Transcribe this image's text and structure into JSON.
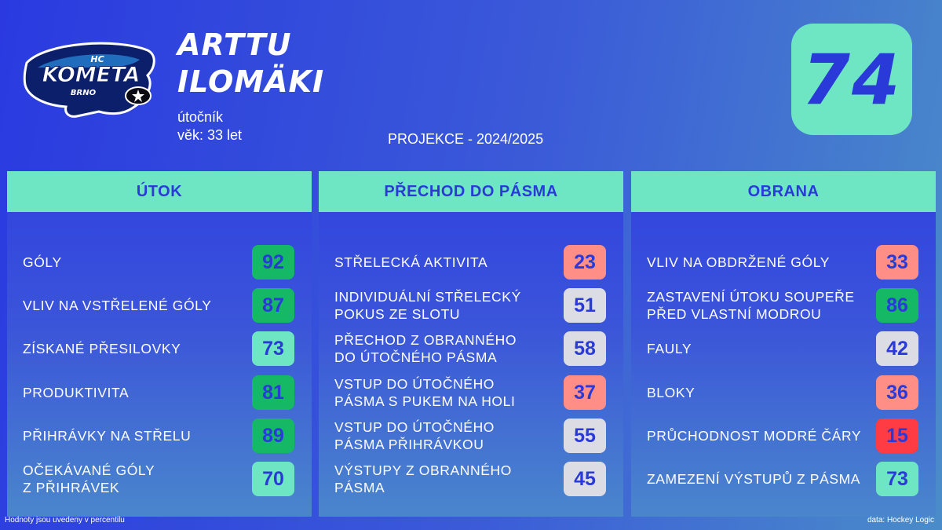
{
  "header": {
    "logo_text": {
      "top": "HC",
      "main": "KOMETA",
      "bottom": "BRNO"
    },
    "first_name": "ARTTU",
    "last_name": "ILOMÄKI",
    "position": "útočník",
    "age": "věk: 33 let",
    "projection": "PROJEKCE - 2024/2025",
    "overall_rating": "74"
  },
  "colors": {
    "background": "#2f45dc",
    "accent": "#6ee6c3",
    "text_blue": "#2a3ad8",
    "tier_high": "#14b865",
    "tier_good": "#6ee6c3",
    "tier_mid": "#dcdde4",
    "tier_low": "#ff8e86",
    "tier_very_low": "#ff3b44"
  },
  "panels": [
    {
      "title": "ÚTOK",
      "stats": [
        {
          "label": [
            "GÓLY"
          ],
          "value": "92",
          "tier": "high"
        },
        {
          "label": [
            "VLIV NA VSTŘELENÉ GÓLY"
          ],
          "value": "87",
          "tier": "high"
        },
        {
          "label": [
            "ZÍSKANÉ PŘESILOVKY"
          ],
          "value": "73",
          "tier": "good"
        },
        {
          "label": [
            "PRODUKTIVITA"
          ],
          "value": "81",
          "tier": "high"
        },
        {
          "label": [
            "PŘIHRÁVKY NA STŘELU"
          ],
          "value": "89",
          "tier": "high"
        },
        {
          "label": [
            "OČEKÁVANÉ GÓLY",
            "Z PŘIHRÁVEK"
          ],
          "value": "70",
          "tier": "good"
        }
      ]
    },
    {
      "title": "PŘECHOD DO PÁSMA",
      "stats": [
        {
          "label": [
            "STŘELECKÁ AKTIVITA"
          ],
          "value": "23",
          "tier": "low"
        },
        {
          "label": [
            "INDIVIDUÁLNÍ STŘELECKÝ",
            "POKUS ZE SLOTU"
          ],
          "value": "51",
          "tier": "mid"
        },
        {
          "label": [
            "PŘECHOD Z OBRANNÉHO",
            "DO ÚTOČNÉHO PÁSMA"
          ],
          "value": "58",
          "tier": "mid"
        },
        {
          "label": [
            "VSTUP DO ÚTOČNÉHO",
            "PÁSMA S PUKEM NA HOLI"
          ],
          "value": "37",
          "tier": "low"
        },
        {
          "label": [
            "VSTUP DO ÚTOČNÉHO",
            "PÁSMA PŘIHRÁVKOU"
          ],
          "value": "55",
          "tier": "mid"
        },
        {
          "label": [
            "VÝSTUPY Z OBRANNÉHO",
            "PÁSMA"
          ],
          "value": "45",
          "tier": "mid"
        }
      ]
    },
    {
      "title": "OBRANA",
      "stats": [
        {
          "label": [
            "VLIV NA OBDRŽENÉ GÓLY"
          ],
          "value": "33",
          "tier": "low"
        },
        {
          "label": [
            "ZASTAVENÍ ÚTOKU SOUPEŘE",
            "PŘED VLASTNÍ MODROU"
          ],
          "value": "86",
          "tier": "high"
        },
        {
          "label": [
            "FAULY"
          ],
          "value": "42",
          "tier": "mid"
        },
        {
          "label": [
            "BLOKY"
          ],
          "value": "36",
          "tier": "low"
        },
        {
          "label": [
            "PRŮCHODNOST MODRÉ ČÁRY"
          ],
          "value": "15",
          "tier": "very_low"
        },
        {
          "label": [
            "ZAMEZENÍ VÝSTUPŮ Z PÁSMA"
          ],
          "value": "73",
          "tier": "good"
        }
      ]
    }
  ],
  "footer": {
    "note": "Hodnoty jsou uvedeny v percentilu",
    "source": "data: Hockey Logic"
  }
}
